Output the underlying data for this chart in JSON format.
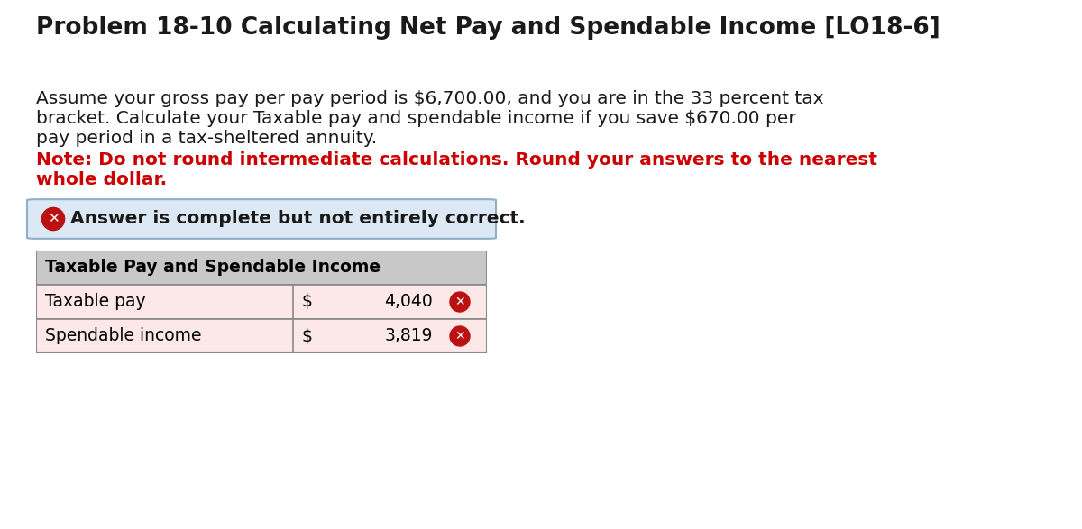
{
  "title": "Problem 18-10 Calculating Net Pay and Spendable Income [LO18-6]",
  "body_line1": "Assume your gross pay per pay period is $6,700.00, and you are in the 33 percent tax",
  "body_line2": "bracket. Calculate your Taxable pay and spendable income if you save $670.00 per",
  "body_line3": "pay period in a tax-sheltered annuity.",
  "note_line1": "Note: Do not round intermediate calculations. Round your answers to the nearest",
  "note_line2": "whole dollar.",
  "banner_text": "Answer is complete but not entirely correct.",
  "table_header": "Taxable Pay and Spendable Income",
  "rows": [
    {
      "label": "Taxable pay",
      "currency": "$",
      "value": "4,040",
      "wrong": true
    },
    {
      "label": "Spendable income",
      "currency": "$",
      "value": "3,819",
      "wrong": true
    }
  ],
  "bg_color": "#ffffff",
  "title_color": "#1a1a1a",
  "body_color": "#1a1a1a",
  "note_color": "#cc0000",
  "banner_bg": "#dce9f5",
  "banner_border": "#8faec8",
  "banner_text_color": "#1a1a1a",
  "table_header_bg": "#c8c8c8",
  "table_wrong_bg": "#fce8e8",
  "table_border_color": "#888888",
  "wrong_icon_color": "#bb1111",
  "title_fontsize": 19,
  "body_fontsize": 14.5,
  "note_fontsize": 14.5,
  "banner_fontsize": 14.5,
  "table_header_fontsize": 13.5,
  "table_row_fontsize": 13.5
}
